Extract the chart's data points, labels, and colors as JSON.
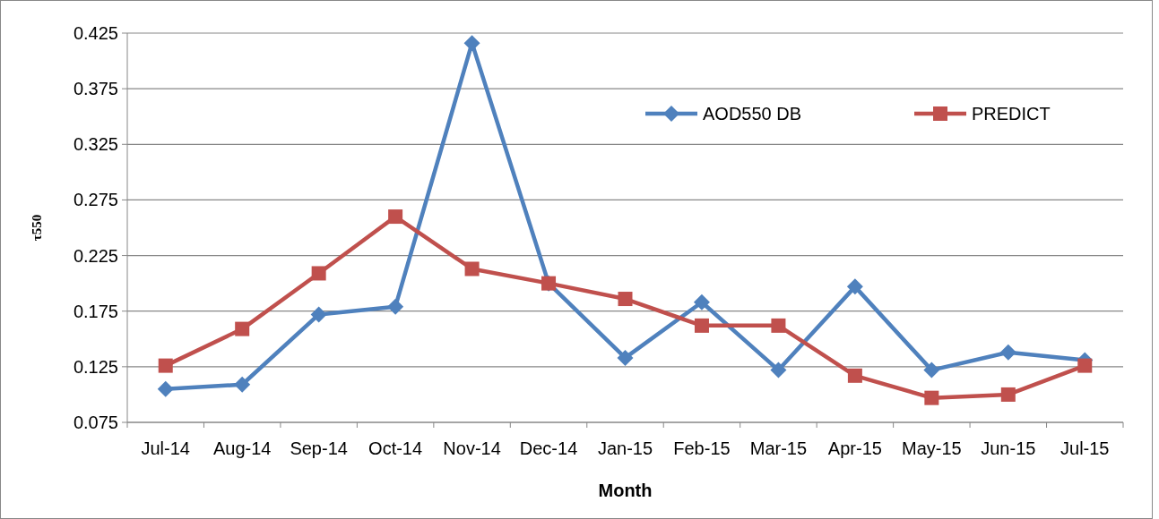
{
  "chart_data": {
    "type": "line",
    "xlabel": "Month",
    "ylabel": "τ550",
    "categories": [
      "Jul-14",
      "Aug-14",
      "Sep-14",
      "Oct-14",
      "Nov-14",
      "Dec-14",
      "Jan-15",
      "Feb-15",
      "Mar-15",
      "Apr-15",
      "May-15",
      "Jun-15",
      "Jul-15"
    ],
    "series": [
      {
        "name": "AOD550 DB",
        "color": "#4f81bd",
        "marker": "diamond",
        "values": [
          0.105,
          0.109,
          0.172,
          0.179,
          0.416,
          0.2,
          0.133,
          0.183,
          0.122,
          0.197,
          0.122,
          0.138,
          0.131
        ]
      },
      {
        "name": "PREDICT",
        "color": "#c0504d",
        "marker": "square",
        "values": [
          0.126,
          0.159,
          0.209,
          0.26,
          0.213,
          0.2,
          0.186,
          0.162,
          0.162,
          0.117,
          0.097,
          0.1,
          0.126
        ]
      }
    ],
    "ylim": [
      0.075,
      0.425
    ],
    "yticks": [
      0.075,
      0.125,
      0.175,
      0.225,
      0.275,
      0.325,
      0.375,
      0.425
    ],
    "grid": "y",
    "legend": "top right",
    "line_style": "solid"
  }
}
